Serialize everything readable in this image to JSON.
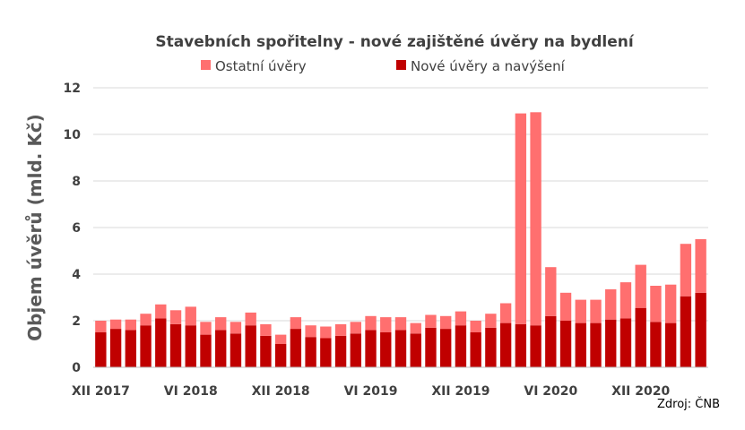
{
  "chart_data": {
    "type": "bar",
    "stacked": true,
    "title": "Stavebních spořitelny - nové zajištěné úvěry na bydlení",
    "ylabel": "Objem úvěrů (mld. Kč)",
    "xlabel": "",
    "ylim": [
      0,
      12
    ],
    "yticks": [
      0,
      2,
      4,
      6,
      8,
      10,
      12
    ],
    "grid": true,
    "legend_position": "top",
    "source": "Zdroj: ČNB",
    "x_tick_labels": [
      {
        "index": 0,
        "label": "XII 2017"
      },
      {
        "index": 6,
        "label": "VI 2018"
      },
      {
        "index": 12,
        "label": "XII 2018"
      },
      {
        "index": 18,
        "label": "VI 2019"
      },
      {
        "index": 24,
        "label": "XII 2019"
      },
      {
        "index": 30,
        "label": "VI 2020"
      },
      {
        "index": 36,
        "label": "XII 2020"
      }
    ],
    "series": [
      {
        "name": "Nové úvěry a navýšení",
        "color": "#c00000",
        "values": [
          1.5,
          1.65,
          1.6,
          1.8,
          2.1,
          1.85,
          1.8,
          1.4,
          1.6,
          1.45,
          1.8,
          1.35,
          1.0,
          1.65,
          1.3,
          1.25,
          1.35,
          1.45,
          1.6,
          1.5,
          1.6,
          1.45,
          1.7,
          1.65,
          1.8,
          1.5,
          1.7,
          1.9,
          1.85,
          1.8,
          2.2,
          2.0,
          1.9,
          1.9,
          2.05,
          2.1,
          2.55,
          1.95,
          1.9,
          3.05,
          3.2
        ]
      },
      {
        "name": "Ostatní úvěry",
        "color": "#ff6f6f",
        "values": [
          0.5,
          0.4,
          0.45,
          0.5,
          0.6,
          0.6,
          0.8,
          0.55,
          0.55,
          0.5,
          0.55,
          0.5,
          0.4,
          0.5,
          0.5,
          0.5,
          0.5,
          0.5,
          0.6,
          0.65,
          0.55,
          0.45,
          0.55,
          0.55,
          0.6,
          0.5,
          0.6,
          0.85,
          9.05,
          9.15,
          2.1,
          1.2,
          1.0,
          1.0,
          1.3,
          1.55,
          1.85,
          1.55,
          1.65,
          2.25,
          2.3
        ]
      }
    ]
  }
}
